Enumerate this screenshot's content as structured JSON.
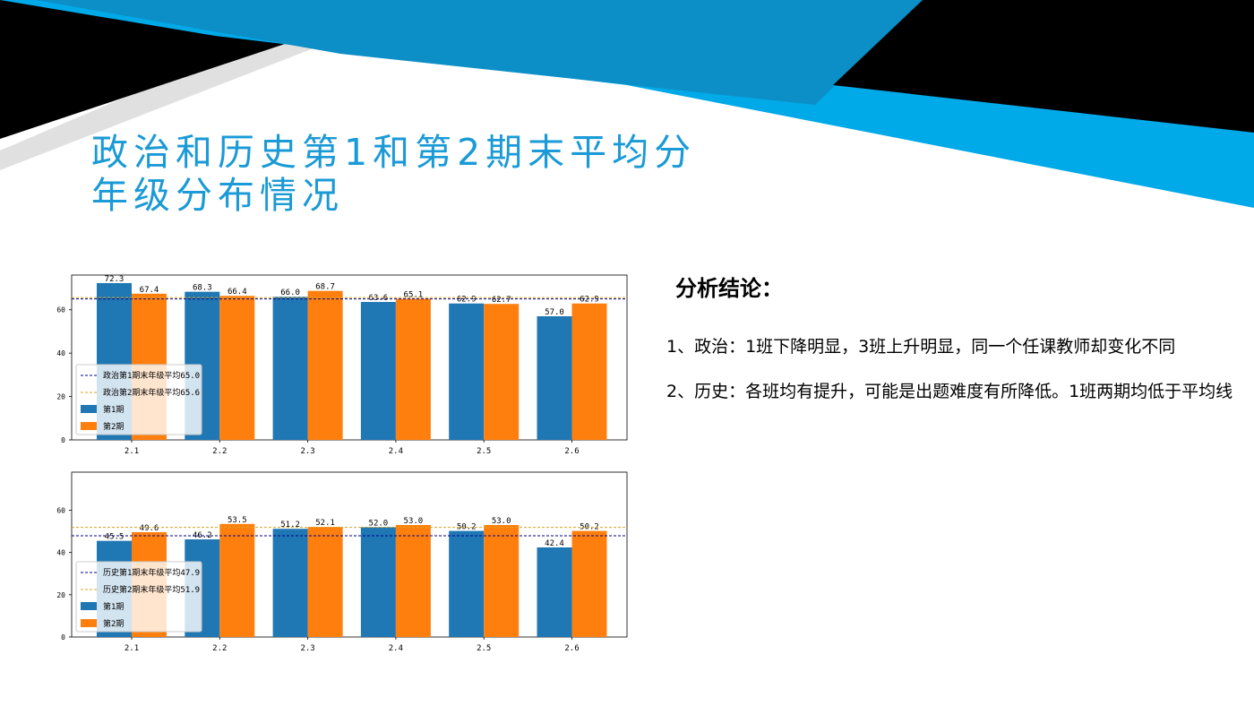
{
  "title": {
    "line1": "政治和历史第1和第2期末平均分",
    "line2": "年级分布情况"
  },
  "conclusion": {
    "heading": "分析结论：",
    "points": [
      "1、政治：1班下降明显，3班上升明显，同一个任课教师却变化不同",
      "2、历史：各班均有提升，可能是出题难度有所降低。1班两期均低于平均线"
    ]
  },
  "colors": {
    "title": "#1a9ad6",
    "series1": "#1f77b4",
    "series2": "#ff7f0e",
    "avg1_line": "#00008b",
    "avg2_line": "#daa520",
    "deco_blue": "#00a9e8",
    "deco_dark_blue": "#0c8fc7"
  },
  "chart_data": [
    {
      "type": "bar",
      "categories": [
        "2.1",
        "2.2",
        "2.3",
        "2.4",
        "2.5",
        "2.6"
      ],
      "series": [
        {
          "name": "第1期",
          "values": [
            72.3,
            68.3,
            66.0,
            63.6,
            62.9,
            57.0
          ]
        },
        {
          "name": "第2期",
          "values": [
            67.4,
            66.4,
            68.7,
            65.1,
            62.7,
            62.9
          ]
        }
      ],
      "reference_lines": [
        {
          "name": "政治第1期末年级平均65.0",
          "value": 65.0,
          "style": "dashed"
        },
        {
          "name": "政治第2期末年级平均65.6",
          "value": 65.6,
          "style": "dashed"
        }
      ],
      "data_labels": [
        [
          "72.3",
          "67.4"
        ],
        [
          "68.3",
          "66.4"
        ],
        [
          "66.0",
          "68.7"
        ],
        [
          "63.6",
          "65.1"
        ],
        [
          "62.9",
          "62.7"
        ],
        [
          "57.0",
          "62.9"
        ]
      ],
      "yticks": [
        "0",
        "20",
        "40",
        "60"
      ],
      "ylim": [
        0,
        76
      ],
      "legend": "lower-left"
    },
    {
      "type": "bar",
      "categories": [
        "2.1",
        "2.2",
        "2.3",
        "2.4",
        "2.5",
        "2.6"
      ],
      "series": [
        {
          "name": "第1期",
          "values": [
            45.5,
            46.2,
            51.2,
            52.0,
            50.2,
            42.4
          ]
        },
        {
          "name": "第2期",
          "values": [
            49.6,
            53.5,
            52.1,
            53.0,
            53.0,
            50.2
          ]
        }
      ],
      "reference_lines": [
        {
          "name": "历史第1期末年级平均47.9",
          "value": 47.9,
          "style": "dashed"
        },
        {
          "name": "历史第2期末年级平均51.9",
          "value": 51.9,
          "style": "dashed"
        }
      ],
      "data_labels": [
        [
          "45.5",
          "49.6"
        ],
        [
          "46.2",
          "53.5"
        ],
        [
          "51.2",
          "52.1"
        ],
        [
          "52.0",
          "53.0"
        ],
        [
          "50.2",
          "53.0"
        ],
        [
          "42.4",
          "50.2"
        ]
      ],
      "yticks": [
        "0",
        "20",
        "40",
        "60"
      ],
      "ylim": [
        0,
        78
      ],
      "legend": "lower-left"
    }
  ]
}
